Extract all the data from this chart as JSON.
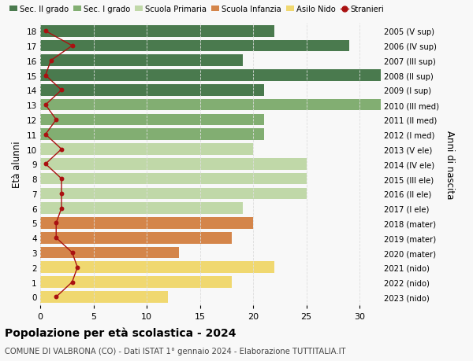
{
  "ages": [
    18,
    17,
    16,
    15,
    14,
    13,
    12,
    11,
    10,
    9,
    8,
    7,
    6,
    5,
    4,
    3,
    2,
    1,
    0
  ],
  "right_labels": [
    "2005 (V sup)",
    "2006 (IV sup)",
    "2007 (III sup)",
    "2008 (II sup)",
    "2009 (I sup)",
    "2010 (III med)",
    "2011 (II med)",
    "2012 (I med)",
    "2013 (V ele)",
    "2014 (IV ele)",
    "2015 (III ele)",
    "2016 (II ele)",
    "2017 (I ele)",
    "2018 (mater)",
    "2019 (mater)",
    "2020 (mater)",
    "2021 (nido)",
    "2022 (nido)",
    "2023 (nido)"
  ],
  "bar_values": [
    22,
    29,
    19,
    32,
    21,
    32,
    21,
    21,
    20,
    25,
    25,
    25,
    19,
    20,
    18,
    13,
    22,
    18,
    12
  ],
  "bar_colors": [
    "#4a7a4e",
    "#4a7a4e",
    "#4a7a4e",
    "#4a7a4e",
    "#4a7a4e",
    "#82ae72",
    "#82ae72",
    "#82ae72",
    "#c0d8a8",
    "#c0d8a8",
    "#c0d8a8",
    "#c0d8a8",
    "#c0d8a8",
    "#d4854a",
    "#d4854a",
    "#d4854a",
    "#f0d870",
    "#f0d870",
    "#f0d870"
  ],
  "stranieri_x": [
    0.5,
    3.0,
    1.0,
    0.5,
    2.0,
    0.5,
    1.5,
    0.5,
    2.0,
    0.5,
    2.0,
    2.0,
    2.0,
    1.5,
    1.5,
    3.0,
    3.5,
    3.0,
    1.5
  ],
  "legend_labels": [
    "Sec. II grado",
    "Sec. I grado",
    "Scuola Primaria",
    "Scuola Infanzia",
    "Asilo Nido",
    "Stranieri"
  ],
  "legend_colors": [
    "#4a7a4e",
    "#82ae72",
    "#c0d8a8",
    "#d4854a",
    "#f0d870",
    "#cc2222"
  ],
  "ylabel_left": "Età alunni",
  "ylabel_right": "Anni di nascita",
  "title": "Popolazione per età scolastica - 2024",
  "subtitle": "COMUNE DI VALBRONA (CO) - Dati ISTAT 1° gennaio 2024 - Elaborazione TUTTITALIA.IT",
  "xlim": [
    0,
    32
  ],
  "bg_color": "#f8f8f8",
  "grid_color": "#dddddd",
  "stranieri_color": "#aa1111",
  "bar_height": 0.78
}
